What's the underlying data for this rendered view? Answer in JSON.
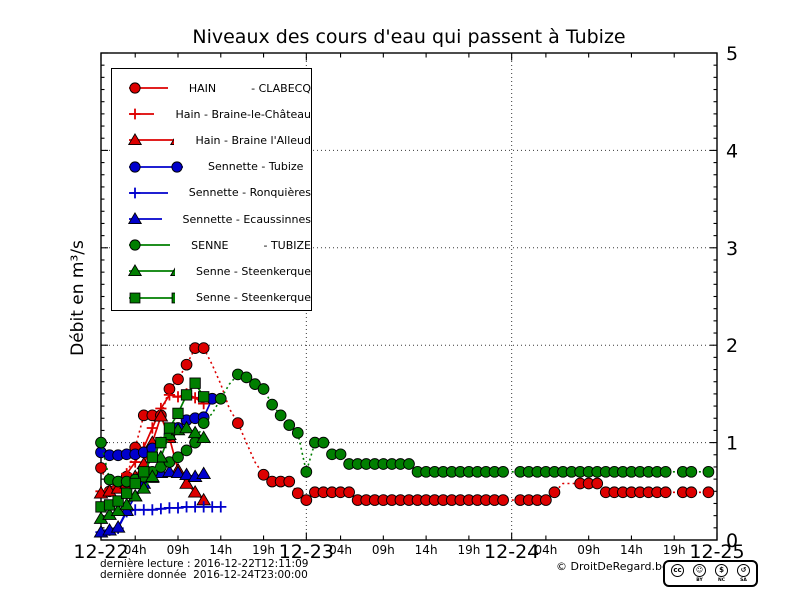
{
  "footer": {
    "last_reading": "dernière lecture : 2016-12-22T12:11:09",
    "last_data": "dernière donnée  2016-12-24T23:00:00",
    "copyright": "© DroitDeRegard.be"
  },
  "cc_badge": {
    "icons": [
      {
        "name": "cc-logo-icon",
        "glyph": "cc",
        "sub": ""
      },
      {
        "name": "attribution-icon",
        "glyph": "☺",
        "sub": "BY"
      },
      {
        "name": "non-commercial-icon",
        "glyph": "$",
        "sub": "NC"
      },
      {
        "name": "share-alike-icon",
        "glyph": "↺",
        "sub": "SA"
      }
    ]
  },
  "chart_data": {
    "type": "line",
    "title": "Niveaux des cours d'eau qui passent à Tubize",
    "xlabel": "",
    "ylabel": "Débit en m³/s",
    "x_unit": "hours since 2016-12-22 00:00",
    "xlim": [
      0,
      72
    ],
    "ylim": [
      0,
      5
    ],
    "grid": {
      "x_values": [
        24,
        48
      ],
      "y_values": [
        1,
        2,
        3,
        4
      ]
    },
    "legend_position": "upper left",
    "y_ticks": [
      {
        "pos": 0,
        "label": "0"
      },
      {
        "pos": 1,
        "label": "1"
      },
      {
        "pos": 2,
        "label": "2"
      },
      {
        "pos": 3,
        "label": "3"
      },
      {
        "pos": 4,
        "label": "4"
      },
      {
        "pos": 5,
        "label": "5"
      }
    ],
    "x_day_ticks": [
      {
        "pos": 0,
        "label": "12-22"
      },
      {
        "pos": 24,
        "label": "12-23"
      },
      {
        "pos": 48,
        "label": "12-24"
      },
      {
        "pos": 72,
        "label": "12-25"
      }
    ],
    "x_hour_ticks": [
      {
        "pos": 4,
        "label": "04h"
      },
      {
        "pos": 9,
        "label": "09h"
      },
      {
        "pos": 14,
        "label": "14h"
      },
      {
        "pos": 19,
        "label": "19h"
      },
      {
        "pos": 28,
        "label": "04h"
      },
      {
        "pos": 33,
        "label": "09h"
      },
      {
        "pos": 38,
        "label": "14h"
      },
      {
        "pos": 43,
        "label": "19h"
      },
      {
        "pos": 52,
        "label": "04h"
      },
      {
        "pos": 57,
        "label": "09h"
      },
      {
        "pos": 62,
        "label": "14h"
      },
      {
        "pos": 67,
        "label": "19h"
      }
    ],
    "series": [
      {
        "name": "HAIN - CLABECQ",
        "legend_label": "HAIN          - CLABECQ",
        "color": "#dd0000",
        "marker": "circle",
        "line": "dotted",
        "points": [
          [
            0,
            0.74
          ],
          [
            1,
            0.5
          ],
          [
            2,
            0.55
          ],
          [
            3,
            0.65
          ],
          [
            4,
            0.95
          ],
          [
            5,
            1.28
          ],
          [
            6,
            1.28
          ],
          [
            7,
            1.28
          ],
          [
            8,
            1.55
          ],
          [
            9,
            1.65
          ],
          [
            10,
            1.8
          ],
          [
            11,
            1.97
          ],
          [
            12,
            1.97
          ],
          [
            13,
            1.8,
            0
          ],
          [
            14,
            1.6,
            0
          ],
          [
            15,
            1.35,
            0
          ],
          [
            16,
            1.2
          ],
          [
            17,
            1.0,
            0
          ],
          [
            18,
            0.8,
            0
          ],
          [
            19,
            0.67
          ],
          [
            20,
            0.6
          ],
          [
            21,
            0.6
          ],
          [
            22,
            0.6
          ],
          [
            23,
            0.48
          ],
          [
            24,
            0.41
          ],
          [
            25,
            0.49
          ],
          [
            26,
            0.49
          ],
          [
            27,
            0.49
          ],
          [
            28,
            0.49
          ],
          [
            29,
            0.49
          ],
          [
            30,
            0.41
          ],
          [
            31,
            0.41
          ],
          [
            32,
            0.41
          ],
          [
            33,
            0.41
          ],
          [
            34,
            0.41
          ],
          [
            35,
            0.41
          ],
          [
            36,
            0.41
          ],
          [
            37,
            0.41
          ],
          [
            38,
            0.41
          ],
          [
            39,
            0.41
          ],
          [
            40,
            0.41
          ],
          [
            41,
            0.41
          ],
          [
            42,
            0.41
          ],
          [
            43,
            0.41
          ],
          [
            44,
            0.41
          ],
          [
            45,
            0.41
          ],
          [
            46,
            0.41
          ],
          [
            47,
            0.41
          ],
          [
            49,
            0.41
          ],
          [
            50,
            0.41
          ],
          [
            51,
            0.41
          ],
          [
            52,
            0.41
          ],
          [
            53,
            0.49
          ],
          [
            54,
            0.58,
            0
          ],
          [
            56,
            0.58
          ],
          [
            57,
            0.58
          ],
          [
            58,
            0.58
          ],
          [
            59,
            0.49
          ],
          [
            60,
            0.49
          ],
          [
            61,
            0.49
          ],
          [
            62,
            0.49
          ],
          [
            63,
            0.49
          ],
          [
            64,
            0.49
          ],
          [
            65,
            0.49
          ],
          [
            66,
            0.49
          ],
          [
            68,
            0.49
          ],
          [
            69,
            0.49
          ],
          [
            71,
            0.49
          ]
        ]
      },
      {
        "name": "Hain - Braine-le-Château",
        "legend_label": "Hain - Braine-le-Château",
        "color": "#dd0000",
        "marker": "plus",
        "line": "solid",
        "points": [
          [
            0,
            0.5
          ],
          [
            1,
            0.52
          ],
          [
            2,
            0.58
          ],
          [
            3,
            0.68
          ],
          [
            4,
            0.8
          ],
          [
            5,
            0.95
          ],
          [
            6,
            1.15
          ],
          [
            7,
            1.35
          ],
          [
            8,
            1.49
          ],
          [
            9,
            1.47
          ],
          [
            10,
            1.5
          ],
          [
            11,
            1.46
          ],
          [
            12,
            1.4
          ]
        ]
      },
      {
        "name": "Hain - Braine l'Alleud",
        "legend_label": "Hain - Braine l'Alleud",
        "color": "#dd0000",
        "marker": "triangle",
        "line": "solid",
        "points": [
          [
            0,
            0.48
          ],
          [
            1,
            0.5
          ],
          [
            2,
            0.53
          ],
          [
            3,
            0.58
          ],
          [
            4,
            0.65
          ],
          [
            5,
            0.78
          ],
          [
            6,
            1.0
          ],
          [
            7,
            1.27
          ],
          [
            8,
            1.05
          ],
          [
            9,
            0.72
          ],
          [
            10,
            0.58
          ],
          [
            11,
            0.49
          ],
          [
            12,
            0.41
          ]
        ]
      },
      {
        "name": "Sennette - Tubize",
        "legend_label": "Sennette - Tubize",
        "color": "#0000cc",
        "marker": "circle",
        "line": "solid",
        "points": [
          [
            0,
            0.9
          ],
          [
            1,
            0.87
          ],
          [
            2,
            0.87
          ],
          [
            3,
            0.88
          ],
          [
            4,
            0.88
          ],
          [
            5,
            0.9
          ],
          [
            6,
            0.94
          ],
          [
            7,
            1.0
          ],
          [
            8,
            1.08
          ],
          [
            9,
            1.15
          ],
          [
            10,
            1.23
          ],
          [
            11,
            1.25
          ],
          [
            12,
            1.26
          ],
          [
            13,
            1.45
          ]
        ]
      },
      {
        "name": "Sennette - Ronquières",
        "legend_label": "Sennette - Ronquières",
        "color": "#0000cc",
        "marker": "plus",
        "line": "solid",
        "points": [
          [
            0,
            0.08
          ],
          [
            1,
            0.1
          ],
          [
            2,
            0.12
          ],
          [
            3,
            0.29
          ],
          [
            4,
            0.31
          ],
          [
            5,
            0.31
          ],
          [
            6,
            0.31
          ],
          [
            7,
            0.32
          ],
          [
            8,
            0.33
          ],
          [
            9,
            0.33
          ],
          [
            10,
            0.34
          ],
          [
            11,
            0.34
          ],
          [
            12,
            0.34
          ],
          [
            13,
            0.34
          ],
          [
            14,
            0.34
          ]
        ]
      },
      {
        "name": "Sennette - Ecaussinnes",
        "legend_label": "Sennette - Ecaussinnes",
        "color": "#0000cc",
        "marker": "triangle",
        "line": "solid",
        "points": [
          [
            0,
            0.08
          ],
          [
            1,
            0.1
          ],
          [
            2,
            0.13
          ],
          [
            3,
            0.3
          ],
          [
            4,
            0.45
          ],
          [
            5,
            0.58
          ],
          [
            6,
            0.64
          ],
          [
            7,
            0.69
          ],
          [
            8,
            0.7
          ],
          [
            9,
            0.69
          ],
          [
            10,
            0.67
          ],
          [
            11,
            0.65
          ],
          [
            12,
            0.68
          ]
        ]
      },
      {
        "name": "SENNE - TUBIZE",
        "legend_label": "SENNE          - TUBIZE",
        "color": "#007f00",
        "marker": "circle",
        "line": "dotted",
        "points": [
          [
            0,
            1.0
          ],
          [
            1,
            0.62
          ],
          [
            2,
            0.6
          ],
          [
            3,
            0.6
          ],
          [
            4,
            0.62
          ],
          [
            5,
            0.65
          ],
          [
            6,
            0.7
          ],
          [
            7,
            0.75
          ],
          [
            8,
            0.8
          ],
          [
            9,
            0.85
          ],
          [
            10,
            0.92
          ],
          [
            11,
            1.0
          ],
          [
            12,
            1.2
          ],
          [
            13,
            1.3,
            0
          ],
          [
            14,
            1.45
          ],
          [
            15,
            1.6,
            0
          ],
          [
            16,
            1.7
          ],
          [
            17,
            1.67
          ],
          [
            18,
            1.6
          ],
          [
            19,
            1.55
          ],
          [
            20,
            1.39
          ],
          [
            21,
            1.28
          ],
          [
            22,
            1.18
          ],
          [
            23,
            1.1
          ],
          [
            24,
            0.7
          ],
          [
            25,
            1.0
          ],
          [
            26,
            1.0
          ],
          [
            27,
            0.88
          ],
          [
            28,
            0.88
          ],
          [
            29,
            0.78
          ],
          [
            30,
            0.78
          ],
          [
            31,
            0.78
          ],
          [
            32,
            0.78
          ],
          [
            33,
            0.78
          ],
          [
            34,
            0.78
          ],
          [
            35,
            0.78
          ],
          [
            36,
            0.78
          ],
          [
            37,
            0.7
          ],
          [
            38,
            0.7
          ],
          [
            39,
            0.7
          ],
          [
            40,
            0.7
          ],
          [
            41,
            0.7
          ],
          [
            42,
            0.7
          ],
          [
            43,
            0.7
          ],
          [
            44,
            0.7
          ],
          [
            45,
            0.7
          ],
          [
            46,
            0.7
          ],
          [
            47,
            0.7
          ],
          [
            49,
            0.7
          ],
          [
            50,
            0.7
          ],
          [
            51,
            0.7
          ],
          [
            52,
            0.7
          ],
          [
            53,
            0.7
          ],
          [
            54,
            0.7
          ],
          [
            55,
            0.7
          ],
          [
            56,
            0.7
          ],
          [
            57,
            0.7
          ],
          [
            58,
            0.7
          ],
          [
            59,
            0.7
          ],
          [
            60,
            0.7
          ],
          [
            61,
            0.7
          ],
          [
            62,
            0.7
          ],
          [
            63,
            0.7
          ],
          [
            64,
            0.7
          ],
          [
            65,
            0.7
          ],
          [
            66,
            0.7
          ],
          [
            68,
            0.7
          ],
          [
            69,
            0.7
          ],
          [
            71,
            0.7
          ]
        ]
      },
      {
        "name": "Senne - Steenkerque",
        "legend_label": "Senne - Steenkerque",
        "color": "#007f00",
        "marker": "triangle",
        "line": "solid",
        "points": [
          [
            0,
            0.22
          ],
          [
            1,
            0.26
          ],
          [
            2,
            0.3
          ],
          [
            3,
            0.36
          ],
          [
            4,
            0.45
          ],
          [
            5,
            0.53
          ],
          [
            6,
            0.65
          ],
          [
            7,
            0.85
          ],
          [
            8,
            1.08
          ],
          [
            9,
            1.13
          ],
          [
            10,
            1.15
          ],
          [
            11,
            1.1
          ],
          [
            12,
            1.05
          ]
        ]
      },
      {
        "name": "Senne - Steenkerque",
        "legend_label": "Senne - Steenkerque",
        "color": "#007f00",
        "marker": "square",
        "line": "solid",
        "points": [
          [
            0,
            0.34
          ],
          [
            1,
            0.36
          ],
          [
            2,
            0.4
          ],
          [
            3,
            0.48
          ],
          [
            4,
            0.58
          ],
          [
            5,
            0.7
          ],
          [
            6,
            0.85
          ],
          [
            7,
            1.0
          ],
          [
            8,
            1.15
          ],
          [
            9,
            1.3
          ],
          [
            10,
            1.49
          ],
          [
            11,
            1.61
          ],
          [
            12,
            1.47
          ]
        ]
      }
    ]
  }
}
